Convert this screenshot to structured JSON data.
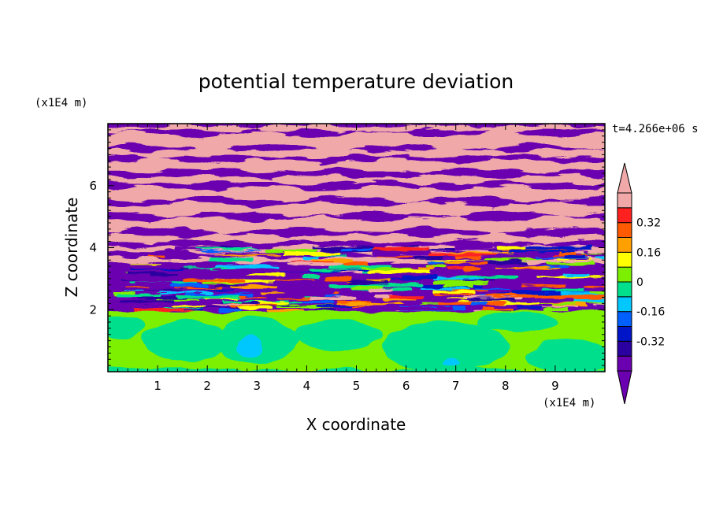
{
  "chart_data": {
    "type": "heatmap",
    "title": "potential temperature deviation",
    "xlabel": "X coordinate",
    "ylabel": "Z coordinate",
    "x_unit": "(x1E4 m)",
    "y_unit": "(x1E4 m)",
    "time_label": "t=4.266e+06 s",
    "xlim": [
      0,
      10
    ],
    "ylim": [
      0,
      8
    ],
    "x_ticks": [
      "1",
      "2",
      "3",
      "4",
      "5",
      "6",
      "7",
      "8",
      "9"
    ],
    "y_ticks": [
      "2",
      "4",
      "6"
    ],
    "colorbar": {
      "levels": [
        -0.48,
        -0.4,
        -0.32,
        -0.24,
        -0.16,
        -0.08,
        0,
        0.08,
        0.16,
        0.24,
        0.32,
        0.4,
        0.48
      ],
      "labels": [
        "-0.32",
        "-0.16",
        "0",
        "0.16",
        "0.32"
      ],
      "extend": "both",
      "colors": [
        "#6a00b0",
        "#2a00a0",
        "#0014c8",
        "#0060ff",
        "#00c8ff",
        "#00e08c",
        "#7cf000",
        "#ffff00",
        "#ffa000",
        "#ff5a00",
        "#ff2020",
        "#f0a8a8"
      ]
    }
  }
}
